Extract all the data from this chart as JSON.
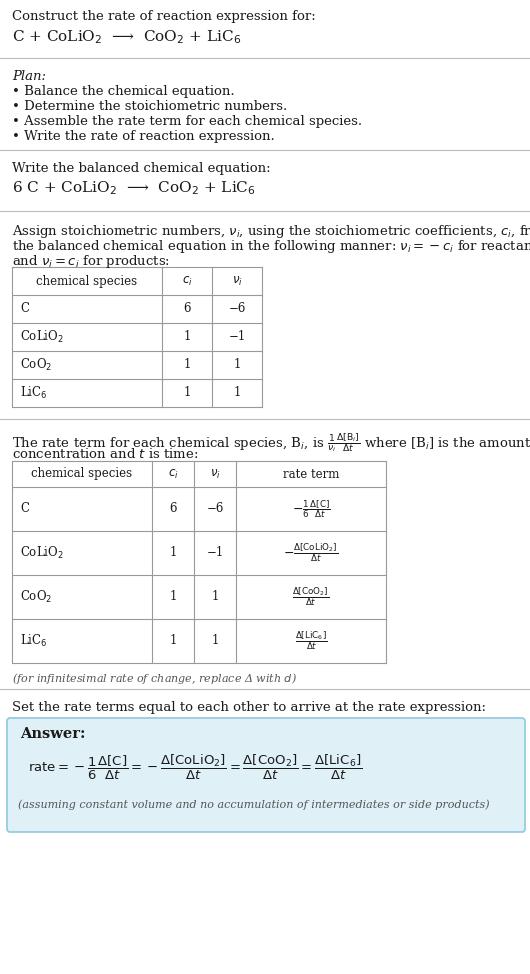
{
  "bg_color": "#ffffff",
  "text_color": "#1a1a1a",
  "section_bg": "#dff0f7",
  "header_title": "Construct the rate of reaction expression for:",
  "unbalanced_eq": "C + CoLiO$_2$  ⟶  CoO$_2$ + LiC$_6$",
  "plan_label": "Plan:",
  "plan_items": [
    "• Balance the chemical equation.",
    "• Determine the stoichiometric numbers.",
    "• Assemble the rate term for each chemical species.",
    "• Write the rate of reaction expression."
  ],
  "balanced_label": "Write the balanced chemical equation:",
  "balanced_eq": "6 C + CoLiO$_2$  ⟶  CoO$_2$ + LiC$_6$",
  "stoich_intro1": "Assign stoichiometric numbers, $\\nu_i$, using the stoichiometric coefficients, $c_i$, from",
  "stoich_intro2": "the balanced chemical equation in the following manner: $\\nu_i = -c_i$ for reactants",
  "stoich_intro3": "and $\\nu_i = c_i$ for products:",
  "table1_headers": [
    "chemical species",
    "$c_i$",
    "$\\nu_i$"
  ],
  "table1_rows": [
    [
      "C",
      "6",
      "−6"
    ],
    [
      "CoLiO$_2$",
      "1",
      "−1"
    ],
    [
      "CoO$_2$",
      "1",
      "1"
    ],
    [
      "LiC$_6$",
      "1",
      "1"
    ]
  ],
  "rate_intro1": "The rate term for each chemical species, B$_i$, is $\\frac{1}{\\nu_i}\\frac{\\Delta[{\\rm B}_i]}{\\Delta t}$ where [B$_i$] is the amount",
  "rate_intro2": "concentration and $t$ is time:",
  "table2_headers": [
    "chemical species",
    "$c_i$",
    "$\\nu_i$",
    "rate term"
  ],
  "table2_rows": [
    [
      "C",
      "6",
      "−6"
    ],
    [
      "CoLiO$_2$",
      "1",
      "−1"
    ],
    [
      "CoO$_2$",
      "1",
      "1"
    ],
    [
      "LiC$_6$",
      "1",
      "1"
    ]
  ],
  "rate_terms": [
    "$-\\frac{1}{6}\\frac{\\Delta[{\\rm C}]}{\\Delta t}$",
    "$-\\frac{\\Delta[{\\rm CoLiO_2}]}{\\Delta t}$",
    "$\\frac{\\Delta[{\\rm CoO_2}]}{\\Delta t}$",
    "$\\frac{\\Delta[{\\rm LiC_6}]}{\\Delta t}$"
  ],
  "infinitesimal_note": "(for infinitesimal rate of change, replace Δ with $d$)",
  "set_equal_label": "Set the rate terms equal to each other to arrive at the rate expression:",
  "answer_label": "Answer:",
  "answer_note": "(assuming constant volume and no accumulation of intermediates or side products)",
  "divider_color": "#bbbbbb",
  "table_line_color": "#999999",
  "note_color": "#555555",
  "box_edge_color": "#90c8e0"
}
